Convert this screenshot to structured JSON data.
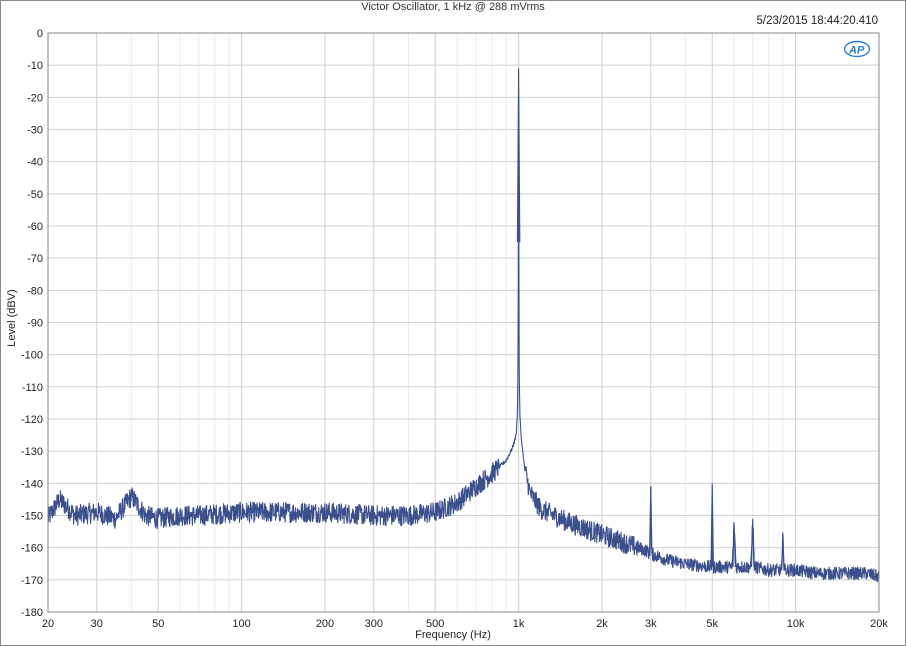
{
  "chart_data": {
    "type": "line",
    "title": "Victor Oscillator, 1 kHz @ 288 mVrms",
    "timestamp": "5/23/2015 18:44:20.410",
    "xlabel": "Frequency (Hz)",
    "ylabel": "Level (dBV)",
    "x_scale": "log",
    "xlim": [
      20,
      20000
    ],
    "ylim": [
      -180,
      0
    ],
    "grid": true,
    "legend": "none",
    "x_ticks": [
      {
        "v": 20,
        "label": "20"
      },
      {
        "v": 30,
        "label": "30"
      },
      {
        "v": 50,
        "label": "50"
      },
      {
        "v": 100,
        "label": "100"
      },
      {
        "v": 200,
        "label": "200"
      },
      {
        "v": 300,
        "label": "300"
      },
      {
        "v": 500,
        "label": "500"
      },
      {
        "v": 1000,
        "label": "1k"
      },
      {
        "v": 2000,
        "label": "2k"
      },
      {
        "v": 3000,
        "label": "3k"
      },
      {
        "v": 5000,
        "label": "5k"
      },
      {
        "v": 10000,
        "label": "10k"
      },
      {
        "v": 20000,
        "label": "20k"
      }
    ],
    "y_ticks": [
      0,
      -10,
      -20,
      -30,
      -40,
      -50,
      -60,
      -70,
      -80,
      -90,
      -100,
      -110,
      -120,
      -130,
      -140,
      -150,
      -160,
      -170,
      -180
    ],
    "line_color": "#3a4f8c",
    "series": [
      {
        "x": [
          20,
          22,
          25,
          30,
          35,
          40,
          45,
          50,
          60,
          70,
          100,
          150,
          200,
          300,
          400,
          500,
          600,
          700,
          800,
          900,
          950,
          980,
          990,
          995,
          998,
          1000,
          1002,
          1005,
          1010,
          1020,
          1050,
          1100,
          1200,
          1500,
          2000,
          2500,
          2900,
          2980,
          3000,
          3020,
          3500,
          4000,
          4900,
          4980,
          5000,
          5020,
          5900,
          6000,
          6100,
          6900,
          7000,
          7100,
          8000,
          8900,
          9000,
          9100,
          10000,
          12000,
          15000,
          18000,
          20000
        ],
        "y": [
          -151,
          -145,
          -150,
          -149,
          -151,
          -144,
          -150,
          -151,
          -150,
          -150,
          -149,
          -149,
          -149,
          -150,
          -150,
          -149,
          -146,
          -141,
          -137,
          -133,
          -129,
          -125,
          -118,
          -105,
          -65,
          -11,
          -65,
          -105,
          -118,
          -125,
          -135,
          -143,
          -148,
          -152,
          -156,
          -159,
          -161,
          -162,
          -141,
          -162,
          -164,
          -165,
          -166,
          -166,
          -140,
          -166,
          -166,
          -153,
          -166,
          -166,
          -151,
          -166,
          -167,
          -167,
          -157,
          -167,
          -167,
          -168,
          -168,
          -168,
          -169
        ]
      }
    ]
  }
}
